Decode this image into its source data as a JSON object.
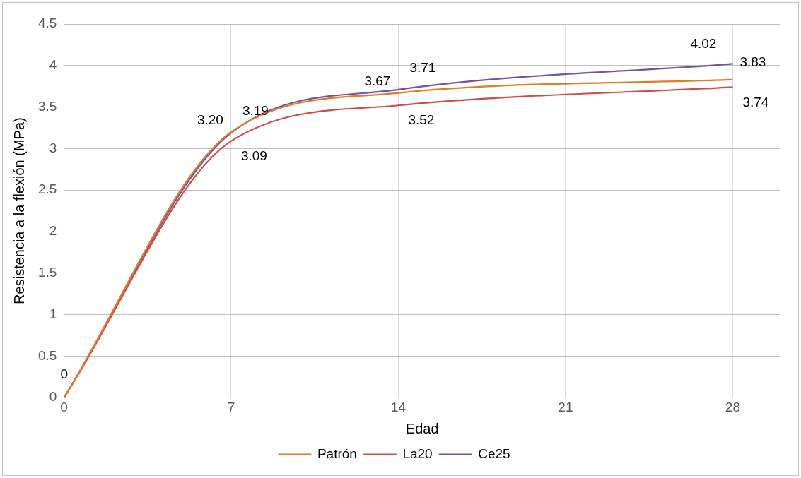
{
  "chart_data": {
    "type": "line",
    "xlabel": "Edad",
    "ylabel": "Resistencia a la flexión (MPa)",
    "x": [
      0,
      7,
      14,
      28
    ],
    "series": [
      {
        "name": "Patrón",
        "color": "#e07b26",
        "values": [
          0,
          3.2,
          3.67,
          3.83
        ],
        "value_labels": [
          "0",
          "3.20",
          "3.67",
          "3.83"
        ]
      },
      {
        "name": "La20",
        "color": "#d24a48",
        "values": [
          0,
          3.09,
          3.52,
          3.74
        ],
        "value_labels": [
          null,
          "3.09",
          "3.52",
          "3.74"
        ]
      },
      {
        "name": "Ce25",
        "color": "#7453a0",
        "values": [
          0,
          3.19,
          3.71,
          4.02
        ],
        "value_labels": [
          null,
          "3.19",
          "3.71",
          "4.02"
        ]
      }
    ],
    "xlim": [
      0,
      30
    ],
    "xticks": [
      0,
      7,
      14,
      21,
      28
    ],
    "ylim": [
      0,
      4.5
    ],
    "yticks": [
      0,
      0.5,
      1,
      1.5,
      2,
      2.5,
      3,
      3.5,
      4,
      4.5
    ],
    "grid": true,
    "legend": "bottom",
    "marker": "none",
    "line_style": "solid"
  }
}
